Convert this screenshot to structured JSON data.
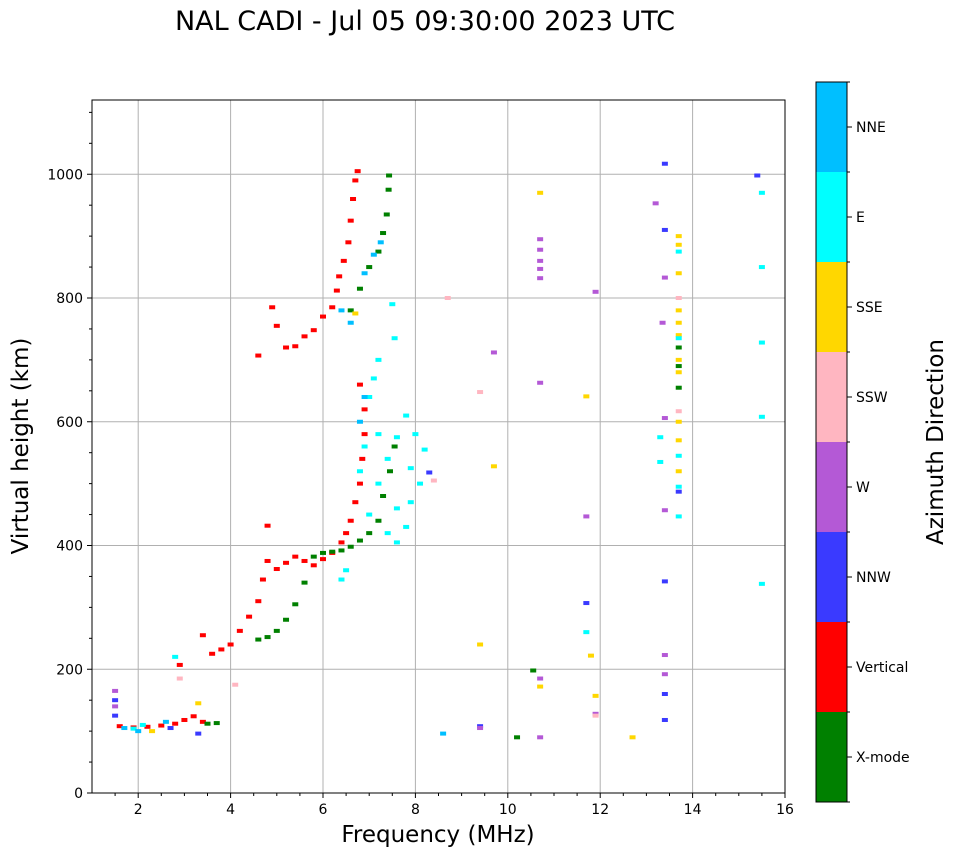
{
  "chart_data": {
    "type": "scatter",
    "title": "NAL CADI - Jul 05 09:30:00 2023 UTC",
    "xlabel": "Frequency (MHz)",
    "ylabel": "Virtual height (km)",
    "xlim": [
      1,
      16
    ],
    "ylim": [
      0,
      1120
    ],
    "xticks": [
      2,
      4,
      6,
      8,
      10,
      12,
      14,
      16
    ],
    "yticks": [
      0,
      200,
      400,
      600,
      800,
      1000
    ],
    "grid": true,
    "colorbar": {
      "label": "Azimuth Direction",
      "categories": [
        {
          "name": "X-mode",
          "color": "#008000"
        },
        {
          "name": "Vertical",
          "color": "#ff0000"
        },
        {
          "name": "NNW",
          "color": "#3a3aff"
        },
        {
          "name": "W",
          "color": "#b459d6"
        },
        {
          "name": "SSW",
          "color": "#ffb6c1"
        },
        {
          "name": "SSE",
          "color": "#ffd700"
        },
        {
          "name": "E",
          "color": "#00ffff"
        },
        {
          "name": "NNE",
          "color": "#00bfff"
        }
      ]
    },
    "series": [
      {
        "name": "Vertical",
        "color": "#ff0000",
        "points": [
          [
            1.6,
            108
          ],
          [
            1.9,
            106
          ],
          [
            2.2,
            107
          ],
          [
            2.5,
            109
          ],
          [
            2.8,
            112
          ],
          [
            3.0,
            118
          ],
          [
            3.2,
            124
          ],
          [
            3.4,
            115
          ],
          [
            2.9,
            207
          ],
          [
            3.4,
            255
          ],
          [
            3.6,
            225
          ],
          [
            3.8,
            232
          ],
          [
            4.0,
            240
          ],
          [
            4.2,
            262
          ],
          [
            4.4,
            285
          ],
          [
            4.6,
            310
          ],
          [
            4.7,
            345
          ],
          [
            4.8,
            375
          ],
          [
            5.0,
            362
          ],
          [
            5.2,
            372
          ],
          [
            5.4,
            382
          ],
          [
            5.6,
            375
          ],
          [
            5.8,
            368
          ],
          [
            6.0,
            378
          ],
          [
            6.2,
            388
          ],
          [
            6.4,
            405
          ],
          [
            6.5,
            420
          ],
          [
            6.6,
            440
          ],
          [
            6.7,
            470
          ],
          [
            6.8,
            500
          ],
          [
            6.85,
            540
          ],
          [
            6.9,
            580
          ],
          [
            6.9,
            620
          ],
          [
            6.8,
            660
          ],
          [
            5.0,
            755
          ],
          [
            5.2,
            720
          ],
          [
            5.4,
            722
          ],
          [
            5.6,
            738
          ],
          [
            5.8,
            748
          ],
          [
            6.0,
            770
          ],
          [
            6.2,
            785
          ],
          [
            6.3,
            812
          ],
          [
            6.35,
            835
          ],
          [
            6.45,
            860
          ],
          [
            6.55,
            890
          ],
          [
            6.6,
            925
          ],
          [
            6.65,
            960
          ],
          [
            6.7,
            990
          ],
          [
            6.75,
            1005
          ],
          [
            4.6,
            707
          ],
          [
            4.9,
            785
          ],
          [
            4.8,
            432
          ]
        ]
      },
      {
        "name": "X-mode",
        "color": "#008000",
        "points": [
          [
            3.5,
            112
          ],
          [
            3.7,
            113
          ],
          [
            4.6,
            248
          ],
          [
            4.8,
            252
          ],
          [
            5.0,
            262
          ],
          [
            5.2,
            280
          ],
          [
            5.4,
            305
          ],
          [
            5.6,
            340
          ],
          [
            5.8,
            382
          ],
          [
            6.0,
            388
          ],
          [
            6.2,
            390
          ],
          [
            6.4,
            392
          ],
          [
            6.6,
            398
          ],
          [
            6.8,
            408
          ],
          [
            7.0,
            420
          ],
          [
            7.2,
            440
          ],
          [
            7.3,
            480
          ],
          [
            7.45,
            520
          ],
          [
            7.55,
            560
          ],
          [
            6.6,
            780
          ],
          [
            6.8,
            815
          ],
          [
            7.0,
            850
          ],
          [
            7.2,
            875
          ],
          [
            7.3,
            905
          ],
          [
            7.38,
            935
          ],
          [
            7.42,
            975
          ],
          [
            7.43,
            998
          ],
          [
            10.2,
            90
          ],
          [
            10.55,
            198
          ],
          [
            13.7,
            690
          ],
          [
            13.7,
            720
          ],
          [
            13.7,
            655
          ]
        ]
      },
      {
        "name": "NNW",
        "color": "#3a3aff",
        "points": [
          [
            1.5,
            150
          ],
          [
            1.5,
            125
          ],
          [
            2.7,
            105
          ],
          [
            3.3,
            96
          ],
          [
            8.3,
            518
          ],
          [
            9.4,
            108
          ],
          [
            11.7,
            307
          ],
          [
            13.4,
            1017
          ],
          [
            13.4,
            910
          ],
          [
            13.4,
            342
          ],
          [
            13.4,
            160
          ],
          [
            13.4,
            118
          ],
          [
            13.7,
            487
          ],
          [
            15.4,
            998
          ]
        ]
      },
      {
        "name": "W",
        "color": "#b459d6",
        "points": [
          [
            1.5,
            165
          ],
          [
            1.5,
            140
          ],
          [
            9.7,
            712
          ],
          [
            9.4,
            105
          ],
          [
            10.7,
            895
          ],
          [
            10.7,
            878
          ],
          [
            10.7,
            860
          ],
          [
            10.7,
            847
          ],
          [
            10.7,
            832
          ],
          [
            10.7,
            663
          ],
          [
            10.7,
            185
          ],
          [
            10.7,
            90
          ],
          [
            11.7,
            447
          ],
          [
            11.9,
            810
          ],
          [
            11.9,
            128
          ],
          [
            13.2,
            953
          ],
          [
            13.4,
            833
          ],
          [
            13.35,
            760
          ],
          [
            13.4,
            606
          ],
          [
            13.4,
            457
          ],
          [
            13.4,
            223
          ],
          [
            13.4,
            192
          ]
        ]
      },
      {
        "name": "SSW",
        "color": "#ffb6c1",
        "points": [
          [
            8.7,
            800
          ],
          [
            8.4,
            505
          ],
          [
            9.4,
            648
          ],
          [
            4.1,
            175
          ],
          [
            11.9,
            125
          ],
          [
            13.7,
            800
          ],
          [
            13.7,
            617
          ],
          [
            2.9,
            185
          ]
        ]
      },
      {
        "name": "SSE",
        "color": "#ffd700",
        "points": [
          [
            10.7,
            970
          ],
          [
            9.7,
            528
          ],
          [
            9.4,
            240
          ],
          [
            10.7,
            172
          ],
          [
            11.7,
            641
          ],
          [
            11.8,
            222
          ],
          [
            11.9,
            157
          ],
          [
            12.7,
            90
          ],
          [
            13.7,
            900
          ],
          [
            13.7,
            886
          ],
          [
            13.7,
            840
          ],
          [
            13.7,
            780
          ],
          [
            13.7,
            760
          ],
          [
            13.7,
            740
          ],
          [
            13.7,
            700
          ],
          [
            13.7,
            680
          ],
          [
            13.7,
            600
          ],
          [
            13.7,
            570
          ],
          [
            13.7,
            520
          ],
          [
            3.3,
            145
          ],
          [
            2.3,
            100
          ],
          [
            6.7,
            775
          ]
        ]
      },
      {
        "name": "E",
        "color": "#00ffff",
        "points": [
          [
            1.9,
            104
          ],
          [
            2.1,
            110
          ],
          [
            2.8,
            220
          ],
          [
            7.0,
            450
          ],
          [
            7.2,
            500
          ],
          [
            7.4,
            540
          ],
          [
            7.6,
            575
          ],
          [
            7.8,
            610
          ],
          [
            8.0,
            580
          ],
          [
            8.2,
            555
          ],
          [
            7.6,
            460
          ],
          [
            7.8,
            430
          ],
          [
            7.9,
            470
          ],
          [
            8.1,
            500
          ],
          [
            7.9,
            525
          ],
          [
            7.2,
            580
          ],
          [
            7.4,
            420
          ],
          [
            7.6,
            405
          ],
          [
            7.0,
            640
          ],
          [
            7.1,
            670
          ],
          [
            7.2,
            700
          ],
          [
            6.8,
            520
          ],
          [
            6.9,
            560
          ],
          [
            7.55,
            735
          ],
          [
            7.5,
            790
          ],
          [
            6.5,
            360
          ],
          [
            6.4,
            345
          ],
          [
            11.7,
            260
          ],
          [
            13.7,
            875
          ],
          [
            13.7,
            735
          ],
          [
            13.7,
            545
          ],
          [
            13.7,
            495
          ],
          [
            13.7,
            447
          ],
          [
            13.3,
            575
          ],
          [
            13.3,
            535
          ],
          [
            15.5,
            970
          ],
          [
            15.5,
            850
          ],
          [
            15.5,
            728
          ],
          [
            15.5,
            608
          ],
          [
            15.5,
            338
          ]
        ]
      },
      {
        "name": "NNE",
        "color": "#00bfff",
        "points": [
          [
            2.0,
            100
          ],
          [
            1.7,
            105
          ],
          [
            2.6,
            115
          ],
          [
            8.6,
            96
          ],
          [
            6.4,
            780
          ],
          [
            6.6,
            760
          ],
          [
            6.9,
            840
          ],
          [
            7.1,
            870
          ],
          [
            7.25,
            890
          ],
          [
            6.8,
            600
          ],
          [
            6.9,
            640
          ]
        ]
      }
    ]
  }
}
